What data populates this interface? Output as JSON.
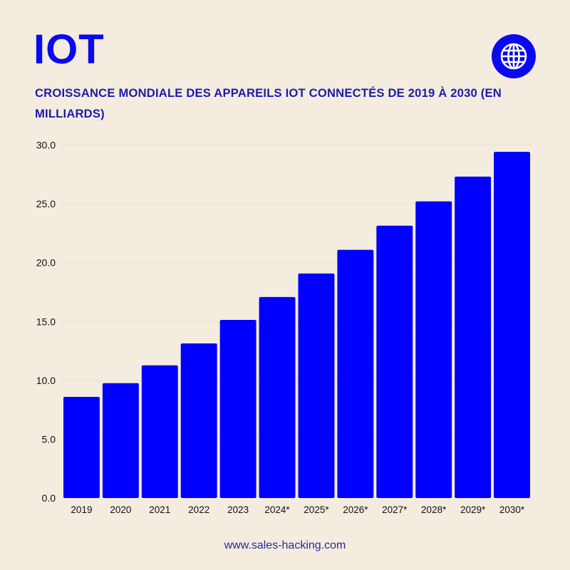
{
  "header": {
    "title": "IOT",
    "subtitle": "CROISSANCE MONDIALE DES APPAREILS IOT CONNECTÉS DE 2019 À 2030 (EN MILLIARDS)",
    "icon": "globe-icon"
  },
  "footer": {
    "url": "www.sales-hacking.com"
  },
  "colors": {
    "bar": "#0000ff",
    "title": "#0a0af0",
    "subtitle": "#1c1ca8",
    "background": "#f4ecdf"
  },
  "chart_data": {
    "type": "bar",
    "title": "CROISSANCE MONDIALE DES APPAREILS IOT CONNECTÉS DE 2019 À 2030 (EN MILLIARDS)",
    "categories": [
      "2019",
      "2020",
      "2021",
      "2022",
      "2023",
      "2024*",
      "2025*",
      "2026*",
      "2027*",
      "2028*",
      "2029*",
      "2030*"
    ],
    "values": [
      8.6,
      9.76,
      11.28,
      13.14,
      15.14,
      17.08,
      19.08,
      21.09,
      23.14,
      25.21,
      27.31,
      29.42
    ],
    "ylim": [
      0,
      30
    ],
    "yticks": [
      "0.0",
      "5.0",
      "10.0",
      "15.0",
      "20.0",
      "25.0",
      "30.0"
    ],
    "xlabel": "",
    "ylabel": "",
    "grid": true,
    "legend": "none"
  }
}
